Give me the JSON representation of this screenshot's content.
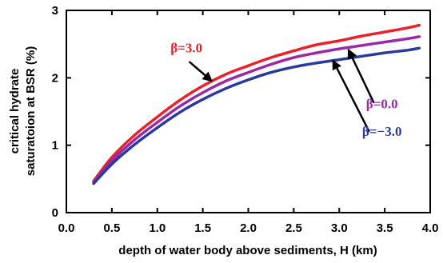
{
  "chart_data": {
    "type": "line",
    "xlabel": "depth of water body above sediments, H (km)",
    "ylabel_lines": [
      "critical hydrate",
      "saturatoion at BSR (%)"
    ],
    "xlim": [
      0.0,
      4.0
    ],
    "ylim": [
      0,
      3
    ],
    "xticks": [
      0.0,
      0.5,
      1.0,
      1.5,
      2.0,
      2.5,
      3.0,
      3.5,
      4.0
    ],
    "xtick_labels": [
      "0.0",
      "0.5",
      "1.0",
      "1.5",
      "2.0",
      "2.5",
      "3.0",
      "3.5",
      "4.0"
    ],
    "yticks": [
      0,
      1,
      2,
      3
    ],
    "ytick_labels": [
      "0",
      "1",
      "2",
      "3"
    ],
    "grid": false,
    "series": [
      {
        "name": "β=3.0",
        "color": "#e8212b",
        "x": [
          0.3,
          0.5,
          0.75,
          1.0,
          1.25,
          1.5,
          1.75,
          2.0,
          2.25,
          2.5,
          2.75,
          3.0,
          3.25,
          3.5,
          3.75,
          3.88
        ],
        "y": [
          0.47,
          0.82,
          1.15,
          1.42,
          1.67,
          1.88,
          2.05,
          2.18,
          2.3,
          2.4,
          2.49,
          2.55,
          2.62,
          2.68,
          2.74,
          2.78
        ]
      },
      {
        "name": "β=0.0",
        "color": "#9a2aa3",
        "x": [
          0.3,
          0.5,
          0.75,
          1.0,
          1.25,
          1.5,
          1.75,
          2.0,
          2.25,
          2.5,
          2.75,
          3.0,
          3.25,
          3.5,
          3.75,
          3.88
        ],
        "y": [
          0.45,
          0.77,
          1.08,
          1.34,
          1.58,
          1.78,
          1.95,
          2.08,
          2.2,
          2.3,
          2.37,
          2.43,
          2.48,
          2.53,
          2.58,
          2.61
        ]
      },
      {
        "name": "β=−3.0",
        "color": "#2a3a9c",
        "x": [
          0.3,
          0.5,
          0.75,
          1.0,
          1.25,
          1.5,
          1.75,
          2.0,
          2.25,
          2.5,
          2.75,
          3.0,
          3.25,
          3.5,
          3.75,
          3.88
        ],
        "y": [
          0.43,
          0.72,
          1.01,
          1.26,
          1.49,
          1.68,
          1.84,
          1.97,
          2.08,
          2.16,
          2.22,
          2.27,
          2.32,
          2.37,
          2.41,
          2.44
        ]
      }
    ],
    "annotations": [
      {
        "text": "β=3.0",
        "color": "#e8212b",
        "label_x": 1.32,
        "label_y": 2.38,
        "arrow_from": [
          1.35,
          2.24
        ],
        "arrow_to": [
          1.6,
          1.95
        ]
      },
      {
        "text": "β=0.0",
        "color": "#9a2aa3",
        "label_x": 3.47,
        "label_y": 1.55,
        "arrow_from": [
          3.38,
          1.63
        ],
        "arrow_to": [
          3.1,
          2.42
        ]
      },
      {
        "text": "β=−3.0",
        "color": "#2a3a9c",
        "label_x": 3.47,
        "label_y": 1.14,
        "arrow_from": [
          3.33,
          1.2
        ],
        "arrow_to": [
          2.93,
          2.26
        ]
      }
    ]
  }
}
